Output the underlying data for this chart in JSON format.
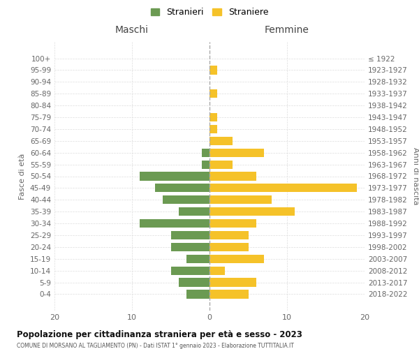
{
  "age_groups": [
    "0-4",
    "5-9",
    "10-14",
    "15-19",
    "20-24",
    "25-29",
    "30-34",
    "35-39",
    "40-44",
    "45-49",
    "50-54",
    "55-59",
    "60-64",
    "65-69",
    "70-74",
    "75-79",
    "80-84",
    "85-89",
    "90-94",
    "95-99",
    "100+"
  ],
  "birth_years": [
    "2018-2022",
    "2013-2017",
    "2008-2012",
    "2003-2007",
    "1998-2002",
    "1993-1997",
    "1988-1992",
    "1983-1987",
    "1978-1982",
    "1973-1977",
    "1968-1972",
    "1963-1967",
    "1958-1962",
    "1953-1957",
    "1948-1952",
    "1943-1947",
    "1938-1942",
    "1933-1937",
    "1928-1932",
    "1923-1927",
    "≤ 1922"
  ],
  "maschi": [
    3,
    4,
    5,
    3,
    5,
    5,
    9,
    4,
    6,
    7,
    9,
    1,
    1,
    0,
    0,
    0,
    0,
    0,
    0,
    0,
    0
  ],
  "femmine": [
    5,
    6,
    2,
    7,
    5,
    5,
    6,
    11,
    8,
    19,
    6,
    3,
    7,
    3,
    1,
    1,
    0,
    1,
    0,
    1,
    0
  ],
  "maschi_color": "#6b9a52",
  "femmine_color": "#f5c229",
  "background_color": "#ffffff",
  "grid_color": "#cccccc",
  "title": "Popolazione per cittadinanza straniera per età e sesso - 2023",
  "subtitle": "COMUNE DI MORSANO AL TAGLIAMENTO (PN) - Dati ISTAT 1° gennaio 2023 - Elaborazione TUTTITALIA.IT",
  "xlabel_left": "Maschi",
  "xlabel_right": "Femmine",
  "ylabel_left": "Fasce di età",
  "ylabel_right": "Anni di nascita",
  "legend_maschi": "Stranieri",
  "legend_femmine": "Straniere",
  "xlim": 20
}
